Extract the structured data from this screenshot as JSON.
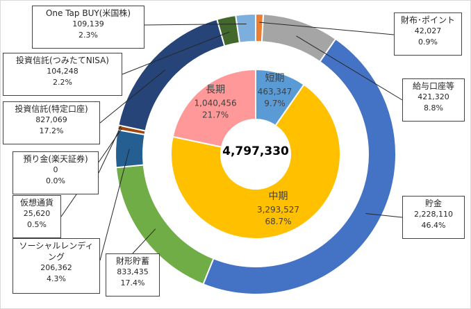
{
  "chart_data": {
    "type": "pie",
    "subtype": "two-level doughnut",
    "total": "4,797,330",
    "inner_ring": [
      {
        "label": "短期",
        "value": 463347,
        "value_text": "463,347",
        "percent": "9.7%",
        "color": "#5b9bd5"
      },
      {
        "label": "中期",
        "value": 3293527,
        "value_text": "3,293,527",
        "percent": "68.7%",
        "color": "#ffc000"
      },
      {
        "label": "長期",
        "value": 1040456,
        "value_text": "1,040,456",
        "percent": "21.7%",
        "color": "#ff9999"
      }
    ],
    "outer_ring": [
      {
        "label": "財布･ポイント",
        "value": 42027,
        "value_text": "42,027",
        "percent": "0.9%",
        "color": "#ed7d31"
      },
      {
        "label": "給与口座等",
        "value": 421320,
        "value_text": "421,320",
        "percent": "8.8%",
        "color": "#a5a5a5"
      },
      {
        "label": "貯金",
        "value": 2228110,
        "value_text": "2,228,110",
        "percent": "46.4%",
        "color": "#4472c4"
      },
      {
        "label": "財形貯蓄",
        "value": 833435,
        "value_text": "833,435",
        "percent": "17.4%",
        "color": "#70ad47"
      },
      {
        "label": "ソーシャルレンディング",
        "value": 206362,
        "value_text": "206,362",
        "percent": "4.3%",
        "color": "#255e91"
      },
      {
        "label": "仮想通貨",
        "value": 25620,
        "value_text": "25,620",
        "percent": "0.5%",
        "color": "#9e480e"
      },
      {
        "label": "預り金(楽天証券)",
        "value": 0,
        "value_text": "0",
        "percent": "0.0%",
        "color": "#636363"
      },
      {
        "label": "投資信託(特定口座)",
        "value": 827069,
        "value_text": "827,069",
        "percent": "17.2%",
        "color": "#264478"
      },
      {
        "label": "投資信託(つみたてNISA)",
        "value": 104248,
        "value_text": "104,248",
        "percent": "2.2%",
        "color": "#43682b"
      },
      {
        "label": "One Tap BUY(米国株)",
        "value": 109139,
        "value_text": "109,139",
        "percent": "2.3%",
        "color": "#7cafdd"
      }
    ]
  }
}
